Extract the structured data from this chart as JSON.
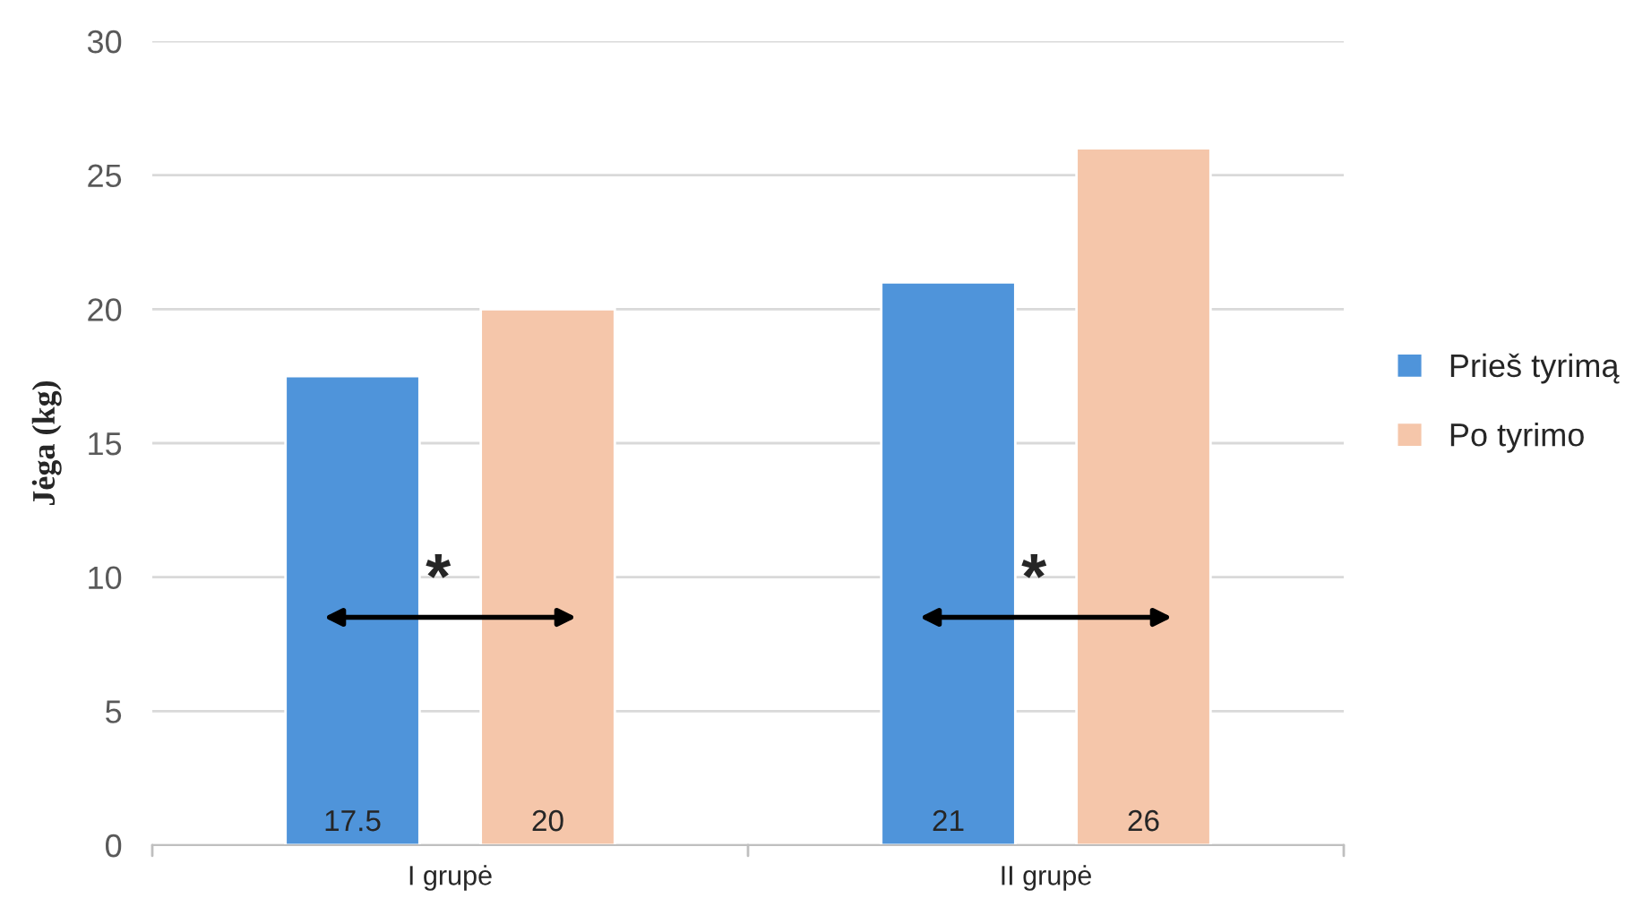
{
  "chart_data": {
    "type": "bar",
    "ylabel": "Jėga (kg)",
    "categories": [
      "I grupė",
      "II grupė"
    ],
    "series": [
      {
        "name": "Prieš tyrimą",
        "color": "#4f94da",
        "values": [
          17.5,
          21
        ]
      },
      {
        "name": "Po tyrimo",
        "color": "#f5c6aa",
        "values": [
          20,
          26
        ]
      }
    ],
    "ylim": [
      0,
      30
    ],
    "yticks": [
      0,
      5,
      10,
      15,
      20,
      25,
      30
    ],
    "grid": "y",
    "legend": "right",
    "data_labels": true,
    "annotations": [
      "*",
      "*"
    ]
  }
}
